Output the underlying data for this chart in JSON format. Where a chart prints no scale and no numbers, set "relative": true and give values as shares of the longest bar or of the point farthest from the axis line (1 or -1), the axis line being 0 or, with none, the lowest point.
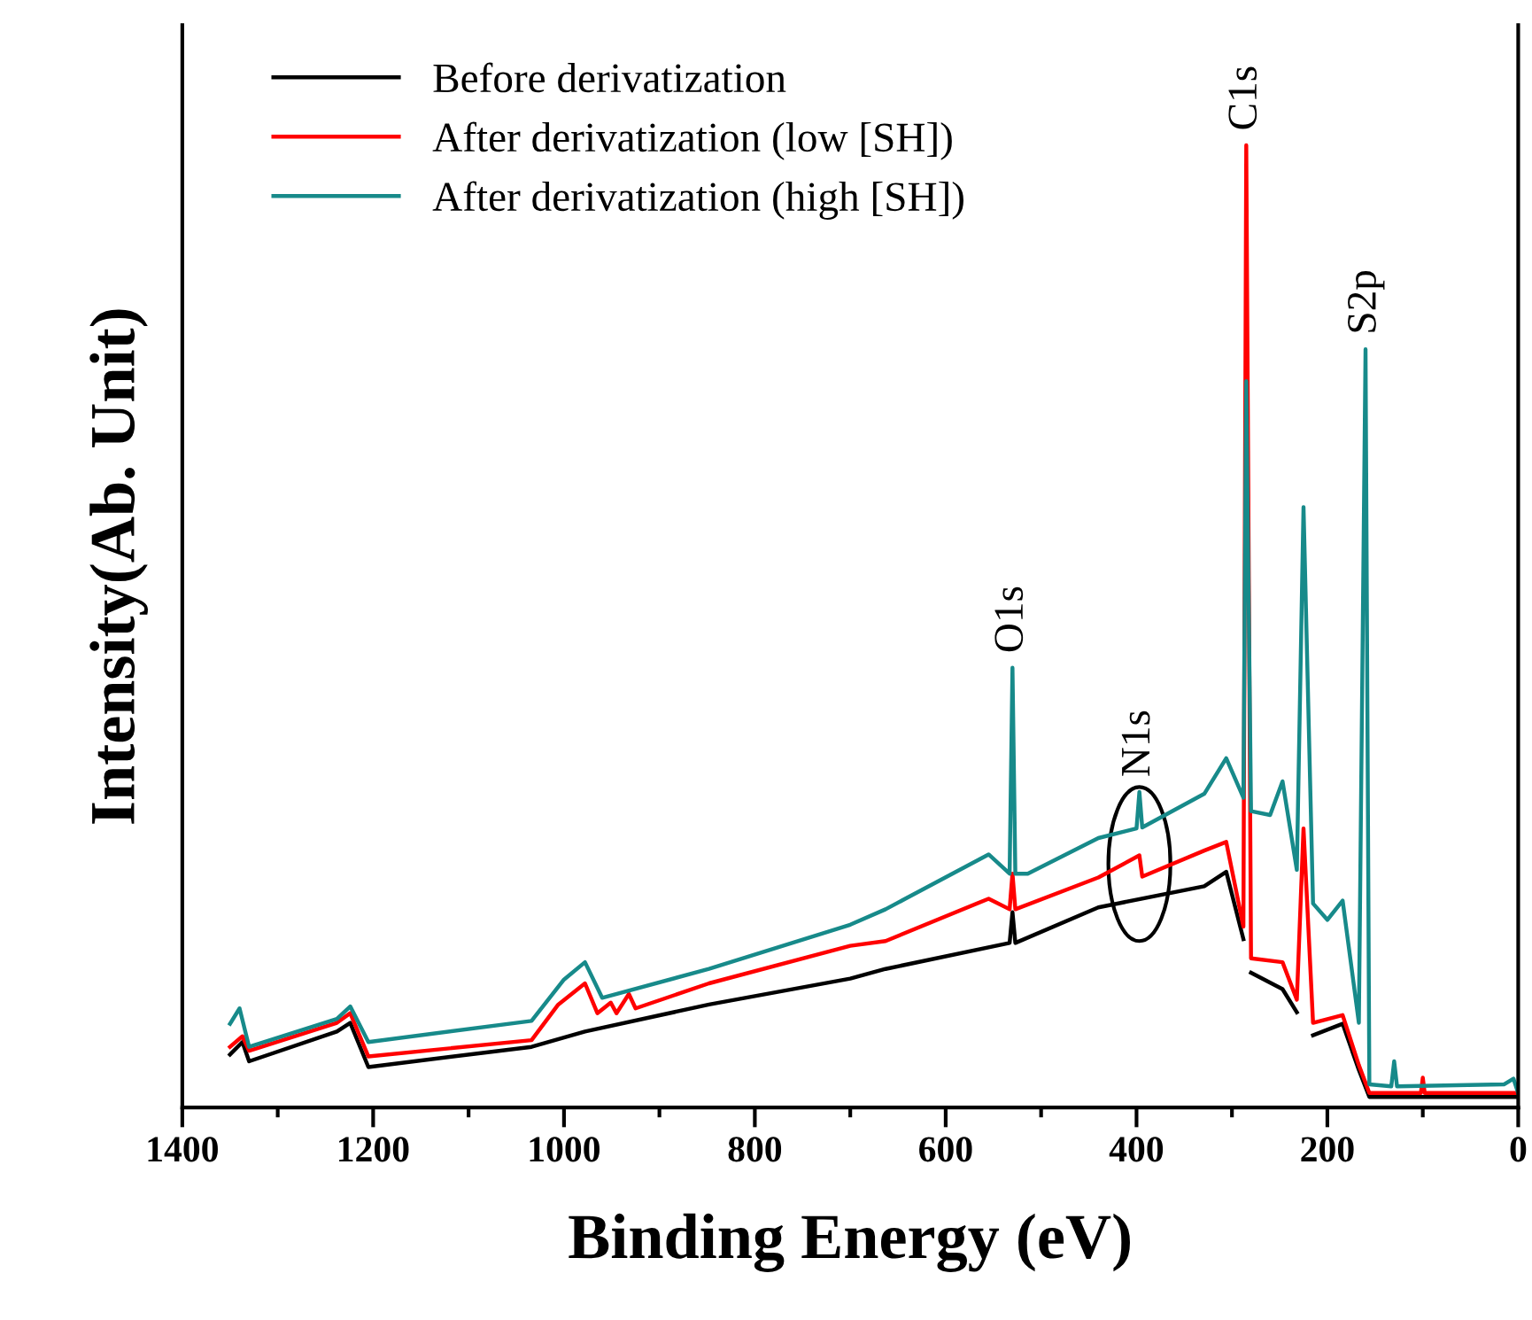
{
  "chart_data": {
    "type": "line",
    "relative": true,
    "xlabel": "Binding Energy (eV)",
    "ylabel": "Intensity(Ab. Unit)",
    "xlim": [
      1400,
      0
    ],
    "xticks": [
      1400,
      1200,
      1000,
      800,
      600,
      400,
      200,
      0
    ],
    "legend": "top left",
    "grid": false,
    "series": [
      {
        "name": "Before derivatization",
        "color": "#000000",
        "x": [
          1350,
          1337,
          1330,
          1238,
          1224,
          1205,
          1034,
          978,
          848,
          700,
          663,
          533,
          530,
          527,
          440,
          329,
          306,
          288,
          285,
          280,
          247,
          232,
          225,
          215,
          184,
          167,
          156,
          100,
          0
        ],
        "values": [
          0.055,
          0.068,
          0.048,
          0.079,
          0.088,
          0.042,
          0.063,
          0.079,
          0.107,
          0.134,
          0.144,
          0.171,
          0.203,
          0.171,
          0.208,
          0.23,
          0.245,
          0.175,
          null,
          0.14,
          0.123,
          0.099,
          null,
          0.075,
          0.087,
          0.039,
          0.011,
          0.011,
          0.011
        ]
      },
      {
        "name": "After derivatization (low [SH])",
        "color": "#ff0000",
        "x": [
          1350,
          1337,
          1330,
          1238,
          1224,
          1205,
          1034,
          1006,
          978,
          965,
          951,
          945,
          932,
          925,
          848,
          700,
          663,
          555,
          533,
          530,
          527,
          440,
          397,
          394,
          329,
          306,
          288,
          285,
          280,
          247,
          232,
          225,
          215,
          184,
          167,
          156,
          102,
          100,
          98,
          0
        ],
        "values": [
          0.063,
          0.074,
          0.059,
          0.088,
          0.098,
          0.053,
          0.07,
          0.107,
          0.129,
          0.098,
          0.109,
          0.098,
          0.118,
          0.103,
          0.129,
          0.168,
          0.173,
          0.217,
          0.206,
          0.243,
          0.206,
          0.239,
          0.262,
          0.24,
          0.267,
          0.276,
          0.188,
          1.0,
          0.155,
          0.151,
          0.112,
          0.29,
          0.088,
          0.096,
          0.044,
          0.015,
          0.015,
          0.031,
          0.015,
          0.015
        ]
      },
      {
        "name": "After derivatization (high [SH])",
        "color": "#178a8a",
        "x": [
          1350,
          1340,
          1330,
          1238,
          1224,
          1205,
          1034,
          1000,
          978,
          960,
          848,
          700,
          663,
          555,
          533,
          530,
          527,
          514,
          440,
          400,
          397,
          394,
          329,
          306,
          288,
          285,
          280,
          260,
          247,
          232,
          225,
          215,
          200,
          184,
          167,
          160,
          156,
          133,
          130,
          127,
          15,
          5,
          0
        ],
        "values": [
          0.087,
          0.103,
          0.063,
          0.092,
          0.105,
          0.068,
          0.09,
          0.133,
          0.151,
          0.114,
          0.144,
          0.19,
          0.206,
          0.263,
          0.243,
          0.457,
          0.243,
          0.243,
          0.28,
          0.29,
          0.328,
          0.291,
          0.326,
          0.363,
          0.322,
          0.755,
          0.308,
          0.304,
          0.339,
          0.247,
          0.624,
          0.212,
          0.195,
          0.215,
          0.088,
          0.788,
          0.024,
          0.022,
          0.048,
          0.022,
          0.024,
          0.03,
          0.015
        ]
      }
    ],
    "annotations": [
      {
        "text": "C1s",
        "x": 285,
        "y": 1.0
      },
      {
        "text": "S2p",
        "x": 160,
        "y": 0.788
      },
      {
        "text": "O1s",
        "x": 530,
        "y": 0.457
      },
      {
        "text": "N1s",
        "x": 397,
        "y": 0.328
      }
    ]
  }
}
